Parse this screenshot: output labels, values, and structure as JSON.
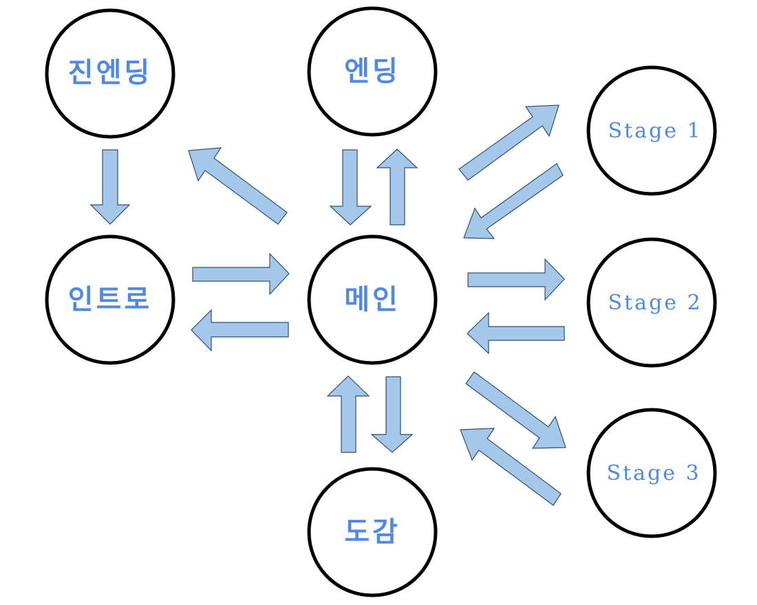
{
  "colors": {
    "arrow_fill": "#a5c8ea",
    "arrow_stroke": "#2d4f72",
    "label": "#4f88e6",
    "circle_stroke": "#000000"
  },
  "nodes": {
    "true_ending": "진엔딩",
    "ending": "엔딩",
    "intro": "인트로",
    "main": "메인",
    "collection": "도감",
    "stage1": "Stage 1",
    "stage2": "Stage 2",
    "stage3": "Stage 3"
  },
  "edges": [
    {
      "from": "true_ending",
      "to": "intro"
    },
    {
      "from": "intro",
      "to": "main"
    },
    {
      "from": "main",
      "to": "intro"
    },
    {
      "from": "main",
      "to": "true_ending"
    },
    {
      "from": "main",
      "to": "ending"
    },
    {
      "from": "ending",
      "to": "main"
    },
    {
      "from": "main",
      "to": "collection"
    },
    {
      "from": "collection",
      "to": "main"
    },
    {
      "from": "main",
      "to": "stage1"
    },
    {
      "from": "stage1",
      "to": "main"
    },
    {
      "from": "main",
      "to": "stage2"
    },
    {
      "from": "stage2",
      "to": "main"
    },
    {
      "from": "main",
      "to": "stage3"
    },
    {
      "from": "stage3",
      "to": "main"
    }
  ]
}
